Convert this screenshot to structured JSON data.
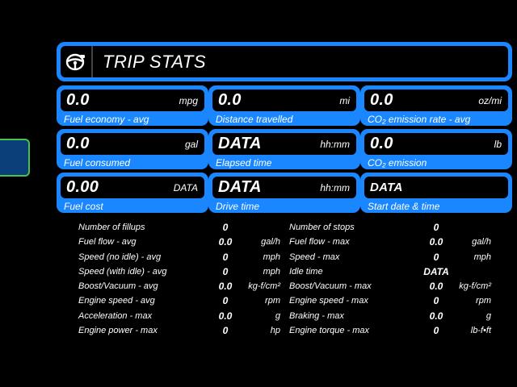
{
  "header": {
    "title": "TRIP STATS",
    "icon": "steering-wheel-icon"
  },
  "colors": {
    "accent": "#1a86ff",
    "background": "#000000",
    "side_button": "#0a3f7a",
    "side_button_border": "#49c24a"
  },
  "cards": [
    {
      "value": "0.0",
      "unit": "mpg",
      "label": "Fuel economy - avg"
    },
    {
      "value": "0.0",
      "unit": "mi",
      "label": "Distance travelled"
    },
    {
      "value": "0.0",
      "unit": "oz/mi",
      "label": "CO₂ emission rate - avg"
    },
    {
      "value": "0.0",
      "unit": "gal",
      "label": "Fuel consumed"
    },
    {
      "value": "DATA",
      "unit": "hh:mm",
      "label": "Elapsed time"
    },
    {
      "value": "0.0",
      "unit": "lb",
      "label": "CO₂ emission"
    },
    {
      "value": "0.00",
      "unit": "DATA",
      "label": "Fuel cost"
    },
    {
      "value": "DATA",
      "unit": "hh:mm",
      "label": "Drive time"
    },
    {
      "value": "DATA",
      "unit": "",
      "label": "Start date & time"
    }
  ],
  "stats_left": [
    {
      "label": "Number of fillups",
      "value": "0",
      "unit": ""
    },
    {
      "label": "Fuel flow - avg",
      "value": "0.0",
      "unit": "gal/h"
    },
    {
      "label": "Speed (no idle) - avg",
      "value": "0",
      "unit": "mph"
    },
    {
      "label": "Speed (with idle) - avg",
      "value": "0",
      "unit": "mph"
    },
    {
      "label": "Boost/Vacuum - avg",
      "value": "0.0",
      "unit": "kg-f/cm²"
    },
    {
      "label": "Engine speed - avg",
      "value": "0",
      "unit": "rpm"
    },
    {
      "label": "Acceleration - max",
      "value": "0.0",
      "unit": "g"
    },
    {
      "label": "Engine power - max",
      "value": "0",
      "unit": "hp"
    }
  ],
  "stats_right": [
    {
      "label": "Number of stops",
      "value": "0",
      "unit": ""
    },
    {
      "label": "Fuel flow - max",
      "value": "0.0",
      "unit": "gal/h"
    },
    {
      "label": "Speed - max",
      "value": "0",
      "unit": "mph"
    },
    {
      "label": "Idle time",
      "value": "DATA",
      "unit": ""
    },
    {
      "label": "Boost/Vacuum - max",
      "value": "0.0",
      "unit": "kg-f/cm²"
    },
    {
      "label": "Engine speed - max",
      "value": "0",
      "unit": "rpm"
    },
    {
      "label": "Braking - max",
      "value": "0.0",
      "unit": "g"
    },
    {
      "label": "Engine torque - max",
      "value": "0",
      "unit": "lb-f•ft"
    }
  ]
}
